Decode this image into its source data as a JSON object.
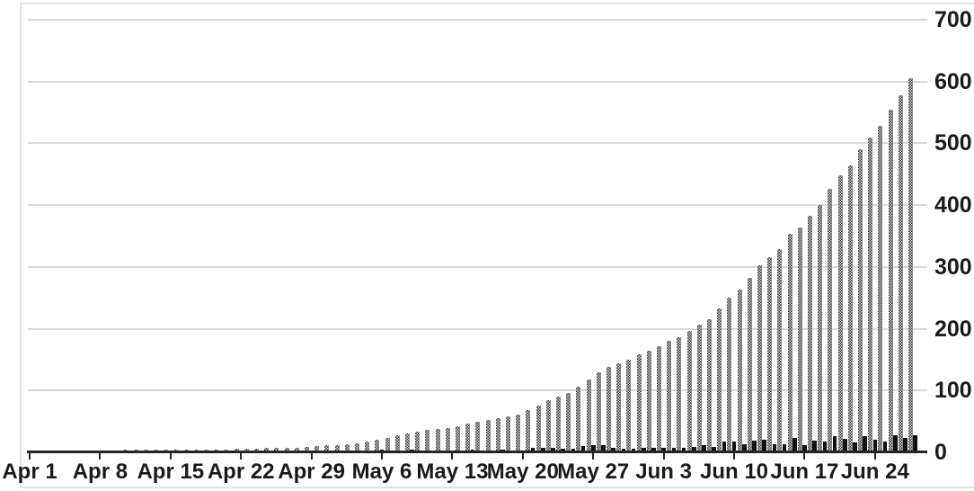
{
  "chart_data": {
    "type": "bar",
    "title": "",
    "xlabel": "",
    "ylabel": "",
    "ylim": [
      0,
      700
    ],
    "y_ticks": [
      0,
      100,
      200,
      300,
      400,
      500,
      600,
      700
    ],
    "grid": true,
    "legend_position": "none",
    "y_axis_side": "right",
    "x_tick_labels": [
      "Apr 1",
      "Apr 8",
      "Apr 15",
      "Apr 22",
      "Apr 29",
      "May 6",
      "May 13",
      "May 20",
      "May 27",
      "Jun 3",
      "Jun 10",
      "Jun 17",
      "Jun 24"
    ],
    "x_tick_every_n_days": 7,
    "categories": [
      "Apr 1",
      "Apr 2",
      "Apr 3",
      "Apr 4",
      "Apr 5",
      "Apr 6",
      "Apr 7",
      "Apr 8",
      "Apr 9",
      "Apr 10",
      "Apr 11",
      "Apr 12",
      "Apr 13",
      "Apr 14",
      "Apr 15",
      "Apr 16",
      "Apr 17",
      "Apr 18",
      "Apr 19",
      "Apr 20",
      "Apr 21",
      "Apr 22",
      "Apr 23",
      "Apr 24",
      "Apr 25",
      "Apr 26",
      "Apr 27",
      "Apr 28",
      "Apr 29",
      "Apr 30",
      "May 1",
      "May 2",
      "May 3",
      "May 4",
      "May 5",
      "May 6",
      "May 7",
      "May 8",
      "May 9",
      "May 10",
      "May 11",
      "May 12",
      "May 13",
      "May 14",
      "May 15",
      "May 16",
      "May 17",
      "May 18",
      "May 19",
      "May 20",
      "May 21",
      "May 22",
      "May 23",
      "May 24",
      "May 25",
      "May 26",
      "May 27",
      "May 28",
      "May 29",
      "May 30",
      "May 31",
      "Jun 1",
      "Jun 2",
      "Jun 3",
      "Jun 4",
      "Jun 5",
      "Jun 6",
      "Jun 7",
      "Jun 8",
      "Jun 9",
      "Jun 10",
      "Jun 11",
      "Jun 12",
      "Jun 13",
      "Jun 14",
      "Jun 15",
      "Jun 16",
      "Jun 17",
      "Jun 18",
      "Jun 19",
      "Jun 20",
      "Jun 21",
      "Jun 22",
      "Jun 23",
      "Jun 24",
      "Jun 25",
      "Jun 26",
      "Jun 27"
    ],
    "series": [
      {
        "name": "series-1-dotted-pattern-bars",
        "style": "dotted-gray-pattern",
        "values": [
          2,
          2,
          2,
          3,
          3,
          3,
          3,
          3,
          3,
          4,
          4,
          4,
          4,
          4,
          5,
          5,
          5,
          5,
          5,
          5,
          6,
          6,
          6,
          7,
          7,
          8,
          8,
          9,
          10,
          11,
          12,
          13,
          15,
          17,
          21,
          24,
          27,
          31,
          34,
          36,
          38,
          40,
          42,
          47,
          50,
          52,
          56,
          58,
          61,
          68,
          76,
          84,
          90,
          96,
          106,
          118,
          130,
          138,
          144,
          150,
          158,
          165,
          172,
          180,
          187,
          196,
          207,
          216,
          233,
          251,
          264,
          283,
          303,
          316,
          329,
          353,
          364,
          383,
          400,
          426,
          448,
          464,
          490,
          510,
          528,
          555,
          578,
          605
        ]
      },
      {
        "name": "series-2-solid-black-bars",
        "style": "solid-black",
        "values": [
          2,
          0,
          0,
          1,
          0,
          0,
          0,
          0,
          0,
          1,
          0,
          0,
          0,
          0,
          1,
          0,
          0,
          0,
          0,
          0,
          1,
          0,
          0,
          1,
          0,
          1,
          0,
          1,
          1,
          1,
          1,
          1,
          2,
          2,
          4,
          3,
          3,
          4,
          3,
          2,
          2,
          2,
          2,
          5,
          3,
          2,
          4,
          2,
          3,
          7,
          8,
          8,
          6,
          6,
          10,
          12,
          12,
          8,
          6,
          6,
          8,
          7,
          7,
          8,
          7,
          9,
          11,
          9,
          17,
          18,
          13,
          19,
          20,
          13,
          13,
          24,
          11,
          19,
          17,
          26,
          22,
          16,
          26,
          20,
          18,
          27,
          23,
          27
        ]
      }
    ],
    "colors": {
      "pattern_dark": "#2f2f2f",
      "pattern_light": "#dedede",
      "solid_bar": "#111111",
      "gridline": "#d9d9d9",
      "axis_line": "#262626",
      "tick_label": "#1a1a1a",
      "background": "#ffffff",
      "frame": "#e2e2e2"
    }
  }
}
